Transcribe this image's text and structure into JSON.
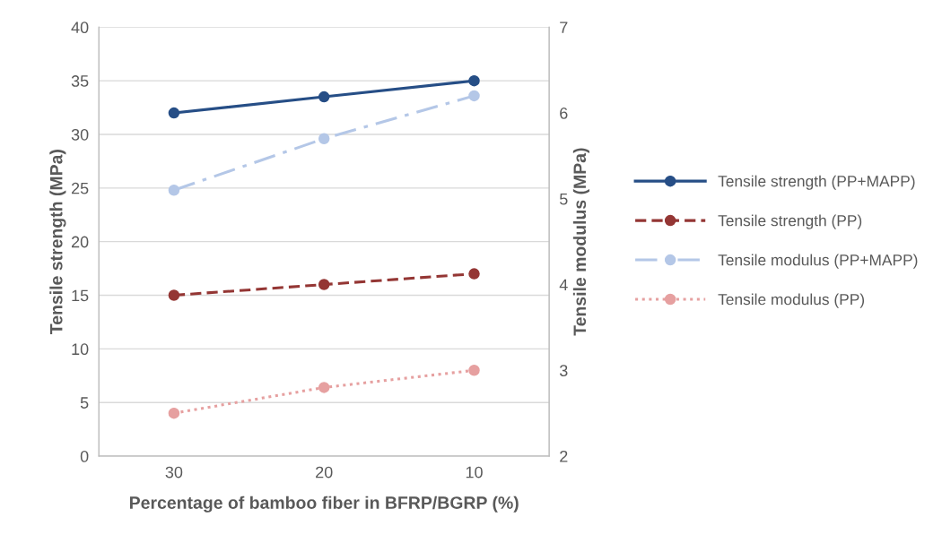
{
  "chart_data": {
    "type": "line",
    "xlabel": "Percentage of bamboo fiber in BFRP/BGRP (%)",
    "ylabel": "Tensile strength (MPa)",
    "y2label": "Tensile modulus (MPa)",
    "categories": [
      "30",
      "20",
      "10"
    ],
    "ylim": [
      0,
      40
    ],
    "yticks": [
      0,
      5,
      10,
      15,
      20,
      25,
      30,
      35,
      40
    ],
    "y2lim": [
      2,
      7
    ],
    "y2ticks": [
      2,
      3,
      4,
      5,
      6,
      7
    ],
    "grid": "y",
    "legend": "right",
    "marker": "circle",
    "series": [
      {
        "name": "Tensile strength (PP+MAPP)",
        "color": "#264e86",
        "values": [
          32,
          33.5,
          35
        ],
        "line_style": "solid"
      },
      {
        "name": "Tensile strength (PP)",
        "color": "#943634",
        "values": [
          15,
          16,
          17
        ],
        "line_style": "dashed"
      },
      {
        "name": "Tensile modulus (PP+MAPP)",
        "color": "#b4c7e7",
        "values": [
          5.1,
          5.7,
          6.2
        ],
        "axis": "y2",
        "line_style": "dashdot"
      },
      {
        "name": "Tensile modulus (PP)",
        "color": "#e6a0a0",
        "values": [
          2.5,
          2.8,
          3.0
        ],
        "axis": "y2",
        "line_style": "dotted"
      }
    ]
  }
}
